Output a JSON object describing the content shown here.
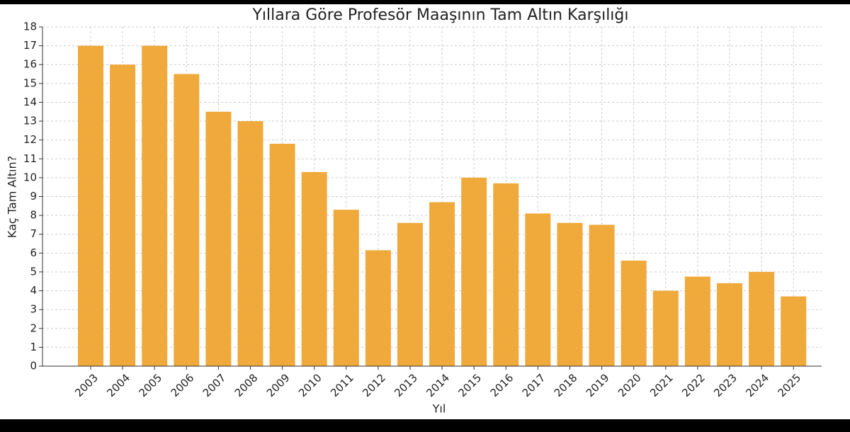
{
  "chart_data": {
    "type": "bar",
    "title": "Yıllara Göre Profesör Maaşının Tam Altın Karşılığı",
    "x_label": "Yıl",
    "y_label": "Kaç Tam Altın?",
    "categories": [
      "2003",
      "2004",
      "2005",
      "2006",
      "2007",
      "2008",
      "2009",
      "2010",
      "2011",
      "2012",
      "2013",
      "2014",
      "2015",
      "2016",
      "2017",
      "2018",
      "2019",
      "2020",
      "2021",
      "2022",
      "2023",
      "2024",
      "2025"
    ],
    "values": [
      17,
      16,
      17,
      15.5,
      13.5,
      13,
      11.8,
      10.3,
      8.3,
      6.15,
      7.6,
      8.7,
      10,
      9.7,
      8.1,
      7.6,
      7.5,
      5.6,
      4,
      4.75,
      4.4,
      5,
      3.7
    ],
    "color": "#f0a93b",
    "ylim": [
      0,
      18
    ],
    "yticks": [
      0,
      1,
      2,
      3,
      4,
      5,
      6,
      7,
      8,
      9,
      10,
      11,
      12,
      13,
      14,
      15,
      16,
      17,
      18
    ],
    "grid": true
  }
}
